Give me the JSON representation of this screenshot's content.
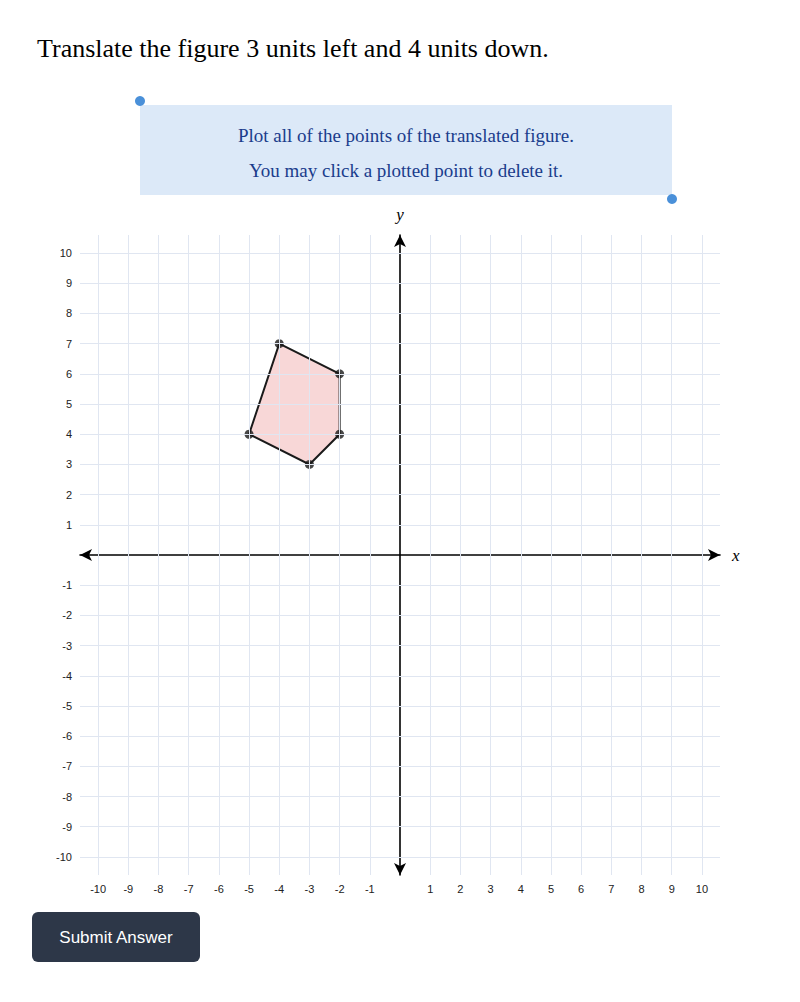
{
  "chart_data": {
    "type": "polygon",
    "title": "Translate the figure 3 units left and 4 units down.",
    "annotations": [
      "Plot all of the points of the translated figure.",
      "You may click a plotted point to delete it.",
      "Submit Answer"
    ],
    "xlabel": "x",
    "ylabel": "y",
    "xlim": [
      -10.6,
      10.6
    ],
    "ylim": [
      -10.6,
      10.6
    ],
    "xticks": [
      -10,
      -9,
      -8,
      -7,
      -6,
      -5,
      -4,
      -3,
      -2,
      -1,
      1,
      2,
      3,
      4,
      5,
      6,
      7,
      8,
      9,
      10
    ],
    "yticks": [
      -10,
      -9,
      -8,
      -7,
      -6,
      -5,
      -4,
      -3,
      -2,
      -1,
      1,
      2,
      3,
      4,
      5,
      6,
      7,
      8,
      9,
      10
    ],
    "grid": true,
    "series": [
      {
        "type": "polygon",
        "color": "#f8d7d7",
        "x": [
          -4,
          -2,
          -2,
          -3,
          -5
        ],
        "values": [
          7,
          6,
          4,
          3,
          4
        ]
      },
      {
        "type": "scatter",
        "color": "#1a1a1a",
        "marker": "circle",
        "x": [
          -4,
          -2,
          -2,
          -3,
          -5
        ],
        "values": [
          7,
          6,
          4,
          3,
          4
        ]
      }
    ]
  }
}
